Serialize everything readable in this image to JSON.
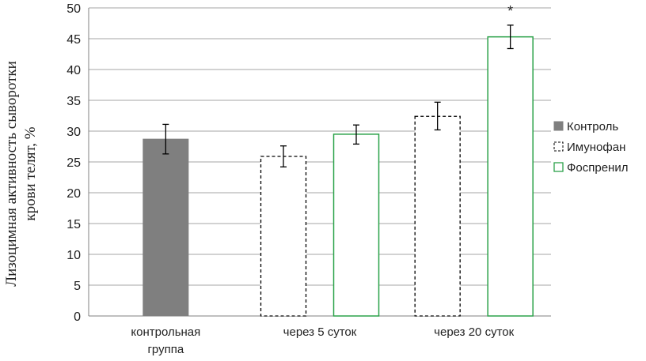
{
  "chart_data": {
    "type": "bar",
    "ylabel_lines": [
      "Лизоцимная активность сыворотки",
      "крови телят, %"
    ],
    "ylim": [
      0,
      50
    ],
    "ytick_step": 5,
    "grid": true,
    "legend_position": "right",
    "groups": [
      {
        "label_lines": [
          "контрольная",
          "группа"
        ]
      },
      {
        "label_lines": [
          "через 5 суток"
        ]
      },
      {
        "label_lines": [
          "через 20 суток"
        ]
      }
    ],
    "series": [
      {
        "name": "Контроль",
        "style": "solid",
        "color": "#7f7f7f"
      },
      {
        "name": "Имунофан",
        "style": "dashed",
        "color": "#000000"
      },
      {
        "name": "Фоспренил",
        "style": "outline",
        "color": "#2ca24a"
      }
    ],
    "bars": [
      {
        "group": 0,
        "series": 0,
        "value": 28.7,
        "err_low": 26.3,
        "err_high": 31.1,
        "annotation": ""
      },
      {
        "group": 1,
        "series": 1,
        "value": 25.9,
        "err_low": 24.2,
        "err_high": 27.6,
        "annotation": ""
      },
      {
        "group": 1,
        "series": 2,
        "value": 29.5,
        "err_low": 27.9,
        "err_high": 31.0,
        "annotation": ""
      },
      {
        "group": 2,
        "series": 1,
        "value": 32.4,
        "err_low": 30.2,
        "err_high": 34.7,
        "annotation": ""
      },
      {
        "group": 2,
        "series": 2,
        "value": 45.3,
        "err_low": 43.4,
        "err_high": 47.2,
        "annotation": "*"
      }
    ]
  }
}
